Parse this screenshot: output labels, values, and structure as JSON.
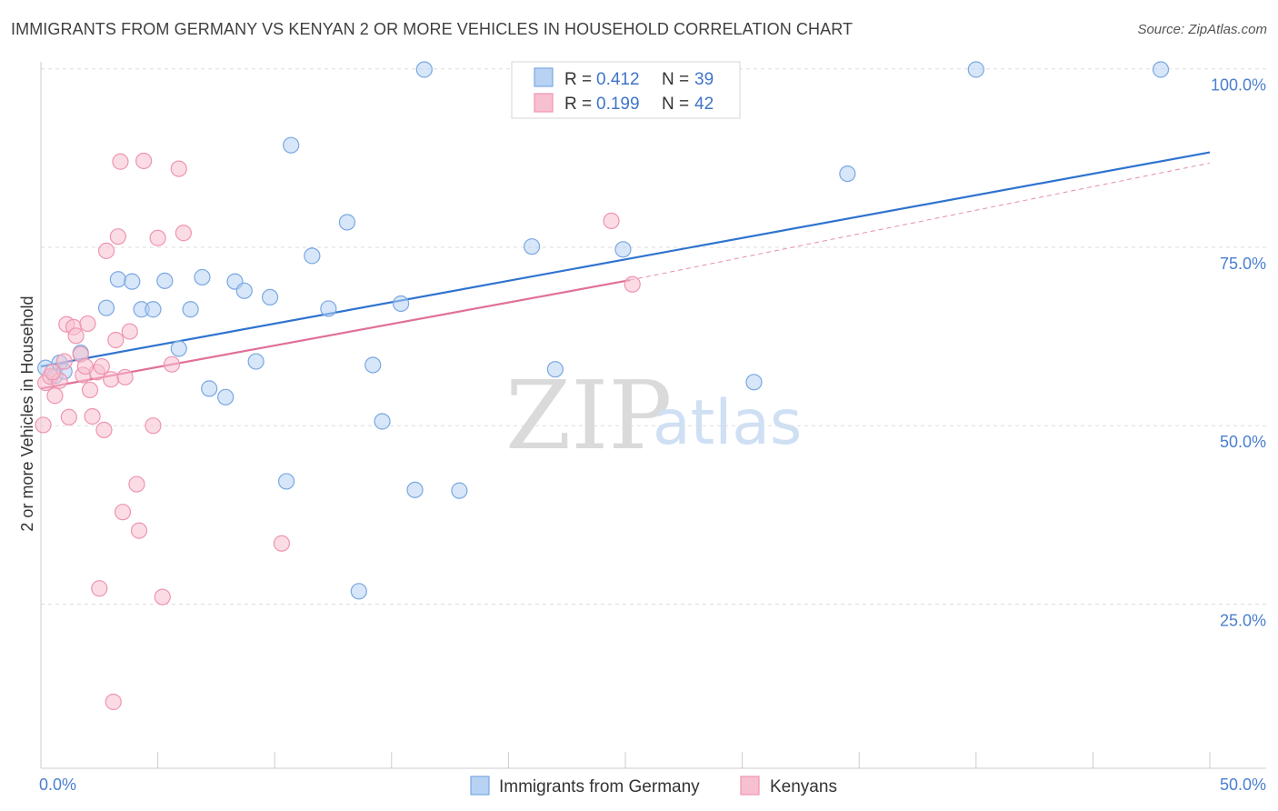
{
  "title": "IMMIGRANTS FROM GERMANY VS KENYAN 2 OR MORE VEHICLES IN HOUSEHOLD CORRELATION CHART",
  "source": "Source: ZipAtlas.com",
  "watermark": {
    "zip": "ZIP",
    "atlas": "atlas"
  },
  "colors": {
    "germany_fill": "#b7d2f3",
    "germany_stroke": "#7aa8e2",
    "germany_line": "#2f73cf",
    "kenyan_fill": "#f7c0d0",
    "kenyan_stroke": "#ee95b0",
    "kenyan_line": "#e0709a",
    "grid": "#dddddd",
    "tick_text": "#4a7fd0"
  },
  "legend": {
    "row1": {
      "r_label": "R = ",
      "r_value": "0.412",
      "n_label": "N = ",
      "n_value": "39"
    },
    "row2": {
      "r_label": "R = ",
      "r_value": "0.199",
      "n_label": "N = ",
      "n_value": "42"
    }
  },
  "chart_data": {
    "type": "scatter",
    "xlabel": "",
    "ylabel": "2 or more Vehicles in Household",
    "xlim": [
      0,
      50
    ],
    "ylim": [
      2,
      102
    ],
    "x_tick_labels": [
      {
        "value": 0,
        "label": "0.0%"
      },
      {
        "value": 50,
        "label": "50.0%"
      }
    ],
    "y_tick_labels": [
      {
        "value": 25,
        "label": "25.0%"
      },
      {
        "value": 50,
        "label": "50.0%"
      },
      {
        "value": 75,
        "label": "75.0%"
      },
      {
        "value": 100,
        "label": "100.0%"
      }
    ],
    "grid": true,
    "legend_position": "top-center",
    "series": [
      {
        "name": "Immigrants from Germany",
        "color": "#7aa8e2",
        "trend": {
          "x": [
            0,
            50
          ],
          "y": [
            58.3,
            88.3
          ],
          "dashed_extension": false
        },
        "points": [
          [
            0.2,
            58.1
          ],
          [
            0.6,
            57.0
          ],
          [
            0.8,
            58.8
          ],
          [
            1.0,
            57.6
          ],
          [
            1.7,
            60.2
          ],
          [
            2.8,
            66.5
          ],
          [
            3.3,
            70.5
          ],
          [
            3.9,
            70.2
          ],
          [
            4.3,
            66.3
          ],
          [
            4.8,
            66.3
          ],
          [
            5.3,
            70.3
          ],
          [
            5.9,
            60.8
          ],
          [
            6.4,
            66.3
          ],
          [
            6.9,
            70.8
          ],
          [
            7.2,
            55.2
          ],
          [
            7.9,
            54.0
          ],
          [
            8.3,
            70.2
          ],
          [
            8.7,
            68.9
          ],
          [
            9.2,
            59.0
          ],
          [
            9.8,
            68.0
          ],
          [
            10.5,
            42.2
          ],
          [
            10.7,
            89.3
          ],
          [
            11.6,
            73.8
          ],
          [
            12.3,
            66.4
          ],
          [
            13.1,
            78.5
          ],
          [
            13.6,
            26.8
          ],
          [
            14.2,
            58.5
          ],
          [
            14.6,
            50.6
          ],
          [
            15.4,
            67.1
          ],
          [
            16.0,
            41.0
          ],
          [
            16.4,
            99.9
          ],
          [
            17.9,
            40.9
          ],
          [
            21.0,
            75.1
          ],
          [
            22.0,
            57.9
          ],
          [
            24.9,
            74.7
          ],
          [
            30.5,
            56.1
          ],
          [
            34.5,
            85.3
          ],
          [
            40.0,
            99.9
          ],
          [
            47.9,
            99.9
          ]
        ]
      },
      {
        "name": "Kenyans",
        "color": "#ee95b0",
        "trend": {
          "x": [
            0,
            25.2
          ],
          "y": [
            55.2,
            70.4
          ],
          "dashed_extension": true,
          "dashed_to": [
            50,
            86.8
          ]
        },
        "points": [
          [
            0.1,
            50.1
          ],
          [
            0.2,
            56.0
          ],
          [
            0.4,
            56.9
          ],
          [
            0.6,
            54.2
          ],
          [
            0.8,
            56.3
          ],
          [
            1.0,
            59.0
          ],
          [
            1.1,
            64.2
          ],
          [
            1.2,
            51.2
          ],
          [
            1.4,
            63.8
          ],
          [
            1.5,
            62.6
          ],
          [
            1.7,
            60.0
          ],
          [
            1.8,
            57.1
          ],
          [
            2.0,
            64.3
          ],
          [
            2.1,
            55.0
          ],
          [
            2.2,
            51.3
          ],
          [
            2.4,
            57.5
          ],
          [
            2.5,
            27.2
          ],
          [
            2.6,
            58.3
          ],
          [
            2.7,
            49.4
          ],
          [
            2.8,
            74.5
          ],
          [
            3.0,
            56.5
          ],
          [
            3.1,
            11.3
          ],
          [
            3.2,
            62.0
          ],
          [
            3.3,
            76.5
          ],
          [
            3.4,
            87.0
          ],
          [
            3.5,
            37.9
          ],
          [
            3.6,
            56.8
          ],
          [
            3.8,
            63.2
          ],
          [
            4.1,
            41.8
          ],
          [
            4.2,
            35.3
          ],
          [
            4.4,
            87.1
          ],
          [
            4.8,
            50.0
          ],
          [
            5.0,
            76.3
          ],
          [
            5.2,
            26.0
          ],
          [
            5.6,
            58.6
          ],
          [
            5.9,
            86.0
          ],
          [
            6.1,
            77.0
          ],
          [
            10.3,
            33.5
          ],
          [
            24.4,
            78.7
          ],
          [
            25.3,
            69.8
          ],
          [
            0.5,
            57.5
          ],
          [
            1.9,
            58.3
          ]
        ]
      }
    ]
  }
}
